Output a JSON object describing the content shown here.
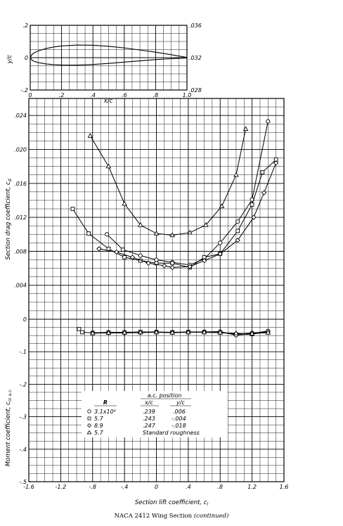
{
  "caption": {
    "main": "NACA 2412 Wing Section",
    "note": "(continued)"
  },
  "chart_data": [
    {
      "type": "line",
      "name": "section-profile",
      "xlabel": "x/c",
      "ylabel": "y/c",
      "xlim": [
        0,
        1.0
      ],
      "ylim": [
        -0.2,
        0.2
      ],
      "xticks": [
        "0",
        ".2",
        ".4",
        ".6",
        ".8",
        "1.0"
      ],
      "yticks_left": [
        ".2",
        "0",
        "-.2"
      ],
      "yticks_right": [
        ".036",
        ".032",
        ".028"
      ],
      "upper_surface": [
        [
          0,
          0
        ],
        [
          0.0125,
          0.0215
        ],
        [
          0.025,
          0.0299
        ],
        [
          0.05,
          0.0413
        ],
        [
          0.1,
          0.0563
        ],
        [
          0.15,
          0.0661
        ],
        [
          0.2,
          0.0726
        ],
        [
          0.3,
          0.078
        ],
        [
          0.4,
          0.0767
        ],
        [
          0.5,
          0.0703
        ],
        [
          0.6,
          0.0603
        ],
        [
          0.7,
          0.0473
        ],
        [
          0.8,
          0.0338
        ],
        [
          0.9,
          0.0184
        ],
        [
          1.0,
          0.0013
        ]
      ],
      "lower_surface": [
        [
          0,
          0
        ],
        [
          0.0125,
          -0.0165
        ],
        [
          0.025,
          -0.0227
        ],
        [
          0.05,
          -0.0301
        ],
        [
          0.1,
          -0.0388
        ],
        [
          0.15,
          -0.0433
        ],
        [
          0.2,
          -0.0455
        ],
        [
          0.3,
          -0.046
        ],
        [
          0.4,
          -0.0423
        ],
        [
          0.5,
          -0.0356
        ],
        [
          0.6,
          -0.0274
        ],
        [
          0.7,
          -0.0198
        ],
        [
          0.8,
          -0.0118
        ],
        [
          0.9,
          -0.0065
        ],
        [
          1.0,
          -0.0013
        ]
      ],
      "grid": true
    },
    {
      "type": "line",
      "name": "drag-and-moment",
      "xlabel": "Section lift coefficient, c",
      "xlabel_sub": "l",
      "ylabel_drag": "Section drag coefficient, c",
      "ylabel_drag_sub": "d",
      "ylabel_moment": "Moment coefficient, c",
      "ylabel_moment_sub": "m a.c.",
      "xlim": [
        -1.6,
        1.6
      ],
      "xticks": [
        "-1.6",
        "-1.2",
        "-.8",
        "-.4",
        "0",
        ".4",
        ".8",
        "1.2",
        "1.6"
      ],
      "drag_ylim": [
        0,
        0.026
      ],
      "drag_yticks": [
        ".024",
        ".020",
        ".016",
        ".012",
        ".008",
        ".004",
        "0"
      ],
      "moment_ylim": [
        -0.5,
        0
      ],
      "moment_yticks": [
        "-.1",
        "-.2",
        "-.3",
        "-.4",
        "-.5"
      ],
      "grid": true,
      "drag_series": [
        {
          "marker": "circle",
          "points": [
            [
              -0.62,
              0.01
            ],
            [
              -0.42,
              0.0082
            ],
            [
              -0.2,
              0.0075
            ],
            [
              0,
              0.007
            ],
            [
              0.2,
              0.0067
            ],
            [
              0.42,
              0.0064
            ],
            [
              0.6,
              0.0071
            ],
            [
              0.8,
              0.009
            ],
            [
              1.02,
              0.0115
            ],
            [
              1.2,
              0.0141
            ],
            [
              1.4,
              0.0233
            ]
          ]
        },
        {
          "marker": "square",
          "points": [
            [
              -1.05,
              0.013
            ],
            [
              -0.85,
              0.0101
            ],
            [
              -0.6,
              0.0083
            ],
            [
              -0.4,
              0.0073
            ],
            [
              -0.2,
              0.0069
            ],
            [
              0,
              0.0066
            ],
            [
              0.2,
              0.0066
            ],
            [
              0.42,
              0.0061
            ],
            [
              0.6,
              0.0073
            ],
            [
              0.8,
              0.0077
            ],
            [
              1.02,
              0.0104
            ],
            [
              1.2,
              0.0135
            ],
            [
              1.33,
              0.0173
            ],
            [
              1.5,
              0.0188
            ]
          ]
        },
        {
          "marker": "diamond",
          "points": [
            [
              -0.72,
              0.0083
            ],
            [
              -0.5,
              0.0079
            ],
            [
              -0.3,
              0.0073
            ],
            [
              -0.1,
              0.0066
            ],
            [
              0.1,
              0.0063
            ],
            [
              0.2,
              0.0061
            ],
            [
              0.42,
              0.0062
            ],
            [
              0.6,
              0.0069
            ],
            [
              0.8,
              0.0077
            ],
            [
              1.02,
              0.0093
            ],
            [
              1.22,
              0.012
            ],
            [
              1.35,
              0.0149
            ],
            [
              1.5,
              0.0184
            ]
          ]
        },
        {
          "marker": "triangle",
          "points": [
            [
              -0.83,
              0.0216
            ],
            [
              -0.6,
              0.018
            ],
            [
              -0.4,
              0.0136
            ],
            [
              -0.2,
              0.0111
            ],
            [
              0,
              0.0101
            ],
            [
              0.2,
              0.0099
            ],
            [
              0.42,
              0.0102
            ],
            [
              0.62,
              0.0111
            ],
            [
              0.82,
              0.0133
            ],
            [
              1.0,
              0.017
            ],
            [
              1.12,
              0.0224
            ]
          ]
        }
      ],
      "moment_series": [
        {
          "marker": "circle",
          "points": [
            [
              -0.6,
              -0.042
            ],
            [
              -0.4,
              -0.042
            ],
            [
              -0.2,
              -0.04
            ],
            [
              0,
              -0.04
            ],
            [
              0.2,
              -0.041
            ],
            [
              0.4,
              -0.04
            ],
            [
              0.6,
              -0.04
            ],
            [
              0.8,
              -0.041
            ],
            [
              1.0,
              -0.045
            ],
            [
              1.2,
              -0.042
            ],
            [
              1.4,
              -0.039
            ]
          ]
        },
        {
          "marker": "square",
          "points": [
            [
              -0.97,
              -0.03
            ],
            [
              -0.93,
              -0.04
            ],
            [
              -0.8,
              -0.042
            ],
            [
              -0.6,
              -0.04
            ],
            [
              -0.4,
              -0.04
            ],
            [
              -0.2,
              -0.039
            ],
            [
              0,
              -0.039
            ],
            [
              0.2,
              -0.04
            ],
            [
              0.4,
              -0.039
            ],
            [
              0.6,
              -0.039
            ],
            [
              0.8,
              -0.04
            ],
            [
              1.0,
              -0.047
            ],
            [
              1.2,
              -0.046
            ],
            [
              1.4,
              -0.038
            ]
          ]
        },
        {
          "marker": "diamond",
          "points": [
            [
              -0.8,
              -0.041
            ],
            [
              -0.6,
              -0.042
            ],
            [
              -0.4,
              -0.042
            ],
            [
              -0.2,
              -0.041
            ],
            [
              0,
              -0.04
            ],
            [
              0.2,
              -0.04
            ],
            [
              0.4,
              -0.04
            ],
            [
              0.6,
              -0.039
            ],
            [
              0.8,
              -0.038
            ],
            [
              1.0,
              -0.049
            ],
            [
              1.2,
              -0.044
            ],
            [
              1.4,
              -0.036
            ]
          ]
        },
        {
          "marker": "triangle",
          "points": [
            [
              -0.8,
              -0.043
            ],
            [
              -0.6,
              -0.042
            ],
            [
              -0.4,
              -0.041
            ],
            [
              -0.2,
              -0.04
            ],
            [
              0,
              -0.04
            ],
            [
              0.2,
              -0.041
            ],
            [
              0.4,
              -0.04
            ],
            [
              0.6,
              -0.04
            ],
            [
              0.8,
              -0.041
            ],
            [
              1.0,
              -0.043
            ],
            [
              1.2,
              -0.044
            ],
            [
              1.4,
              -0.041
            ]
          ]
        }
      ],
      "legend": {
        "placement": "lower-left",
        "header_R": "R",
        "header_ac": "a.c. position",
        "header_xc": "x/c",
        "header_yc": "y/c",
        "rows": [
          {
            "marker": "circle",
            "R": "3.1x10⁶",
            "xc": ".239",
            "yc": ".006"
          },
          {
            "marker": "square",
            "R": "5.7",
            "xc": ".243",
            "yc": "-.004"
          },
          {
            "marker": "diamond",
            "R": "8.9",
            "xc": ".247",
            "yc": "-.018"
          },
          {
            "marker": "triangle",
            "R": "5.7",
            "xc": "Standard roughness",
            "yc": ""
          }
        ]
      }
    }
  ]
}
